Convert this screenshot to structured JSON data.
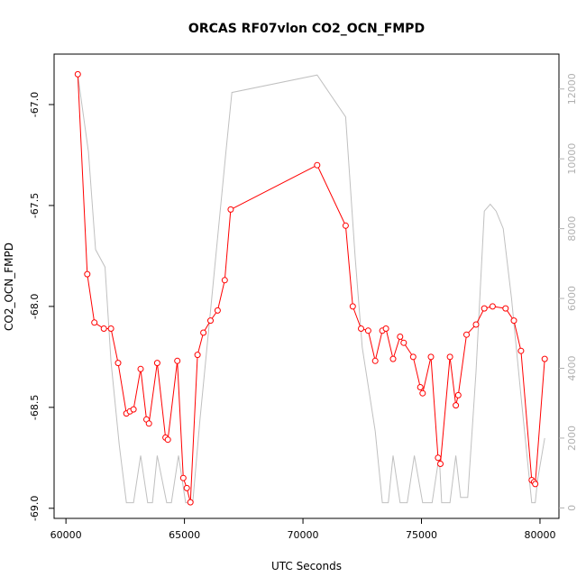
{
  "chart_data": {
    "type": "line",
    "title": "ORCAS RF07vlon CO2_OCN_FMPD",
    "xlabel": "UTC Seconds",
    "ylabel": "CO2_OCN_FMPD",
    "xlim": [
      59500,
      80800
    ],
    "ylim": [
      -69.05,
      -66.75
    ],
    "y2lim": [
      -300,
      13000
    ],
    "x_ticks": [
      60000,
      65000,
      70000,
      75000,
      80000
    ],
    "y_ticks": [
      -69.0,
      -68.5,
      -68.0,
      -67.5,
      -67.0
    ],
    "y2_ticks": [
      0,
      2000,
      4000,
      6000,
      8000,
      10000,
      12000
    ],
    "x_tick_labels": [
      "60000",
      "65000",
      "70000",
      "75000",
      "80000"
    ],
    "y_tick_labels": [
      "-69.0",
      "-68.5",
      "-68.0",
      "-67.5",
      "-67.0"
    ],
    "y2_tick_labels": [
      "0",
      "2000",
      "4000",
      "6000",
      "8000",
      "10000",
      "12000"
    ],
    "grid": false,
    "series": [
      {
        "color": "#ff0000",
        "axis": "left",
        "marker": "open-circle",
        "x": [
          60500,
          60900,
          61200,
          61600,
          61900,
          62200,
          62550,
          62700,
          62850,
          63150,
          63400,
          63500,
          63850,
          64200,
          64300,
          64700,
          64950,
          65100,
          65250,
          65550,
          65800,
          66100,
          66400,
          66700,
          66950,
          70600,
          71800,
          72100,
          72450,
          72750,
          73050,
          73350,
          73500,
          73800,
          74100,
          74250,
          74650,
          74950,
          75050,
          75400,
          75700,
          75800,
          76200,
          76450,
          76550,
          76900,
          77300,
          77650,
          78000,
          78550,
          78900,
          79200,
          79650,
          79750,
          79800,
          80200
        ],
        "y": [
          -66.85,
          -67.84,
          -68.08,
          -68.11,
          -68.11,
          -68.28,
          -68.53,
          -68.52,
          -68.51,
          -68.31,
          -68.56,
          -68.58,
          -68.28,
          -68.65,
          -68.66,
          -68.27,
          -68.85,
          -68.9,
          -68.97,
          -68.24,
          -68.13,
          -68.07,
          -68.02,
          -67.87,
          -67.52,
          -67.3,
          -67.6,
          -68.0,
          -68.11,
          -68.12,
          -68.27,
          -68.12,
          -68.11,
          -68.26,
          -68.15,
          -68.18,
          -68.25,
          -68.4,
          -68.43,
          -68.25,
          -68.75,
          -68.78,
          -68.25,
          -68.49,
          -68.44,
          -68.14,
          -68.09,
          -68.01,
          -68.0,
          -68.01,
          -68.07,
          -68.22,
          -68.86,
          -68.87,
          -68.88,
          -68.26
        ]
      },
      {
        "color": "#c0c0c0",
        "axis": "right",
        "marker": "none",
        "x": [
          60500,
          60950,
          61250,
          61650,
          61900,
          62250,
          62550,
          62850,
          63150,
          63450,
          63650,
          63850,
          64250,
          64450,
          64750,
          65050,
          65350,
          65650,
          66750,
          67000,
          70600,
          71800,
          72200,
          72500,
          73050,
          73350,
          73600,
          73800,
          74100,
          74400,
          74700,
          75050,
          75450,
          75750,
          75850,
          76200,
          76450,
          76650,
          76950,
          77300,
          77650,
          77900,
          78150,
          78450,
          78800,
          79200,
          79650,
          79800,
          79900,
          80200
        ],
        "y": [
          12400,
          10200,
          7400,
          6900,
          4200,
          1800,
          150,
          150,
          1500,
          150,
          150,
          1500,
          150,
          150,
          1500,
          150,
          150,
          2500,
          10200,
          11900,
          12400,
          11200,
          7200,
          4600,
          2200,
          150,
          150,
          1500,
          150,
          150,
          1500,
          150,
          150,
          1500,
          150,
          150,
          1500,
          300,
          300,
          3900,
          8500,
          8700,
          8500,
          8000,
          6000,
          3200,
          150,
          150,
          800,
          2000
        ]
      }
    ]
  }
}
